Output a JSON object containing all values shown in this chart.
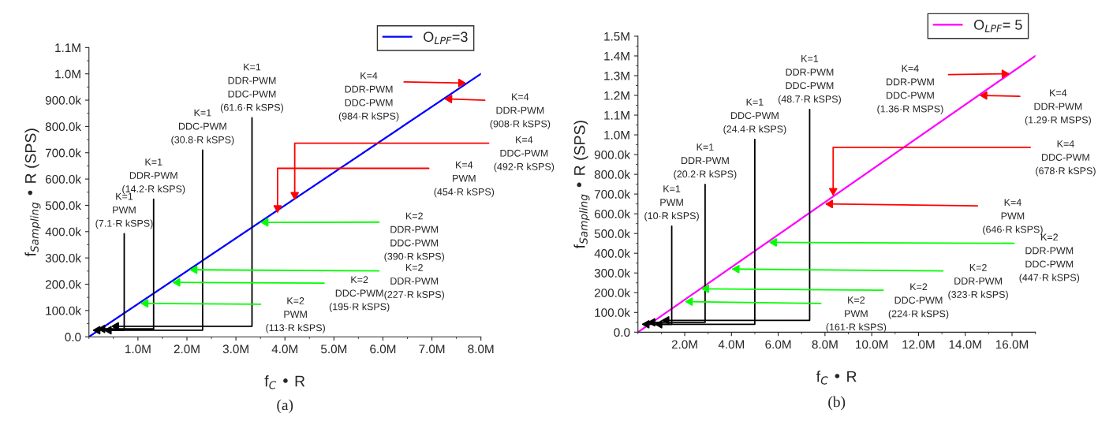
{
  "chart_data": [
    {
      "type": "line",
      "title": "(a)",
      "xlabel": "f$_{C}$ • R",
      "ylabel": "f$_{Sampling}$ • R (SPS)",
      "series": [
        {
          "name": "O$_{LPF}$=3",
          "color": "#0000ff",
          "x": [
            0,
            8000000
          ],
          "values": [
            0,
            1000000
          ]
        }
      ],
      "xlim": [
        0,
        8000000
      ],
      "ylim": [
        0,
        1100000
      ],
      "xticks": [
        {
          "value": 1000000,
          "label": "1.0M"
        },
        {
          "value": 2000000,
          "label": "2.0M"
        },
        {
          "value": 3000000,
          "label": "3.0M"
        },
        {
          "value": 4000000,
          "label": "4.0M"
        },
        {
          "value": 5000000,
          "label": "5.0M"
        },
        {
          "value": 6000000,
          "label": "6.0M"
        },
        {
          "value": 7000000,
          "label": "7.0M"
        },
        {
          "value": 8000000,
          "label": "8.0M"
        }
      ],
      "yticks": [
        {
          "value": 0,
          "label": "0.0"
        },
        {
          "value": 100000,
          "label": "100.0k"
        },
        {
          "value": 200000,
          "label": "200.0k"
        },
        {
          "value": 300000,
          "label": "300.0k"
        },
        {
          "value": 400000,
          "label": "400.0k"
        },
        {
          "value": 500000,
          "label": "500.0k"
        },
        {
          "value": 600000,
          "label": "600.0k"
        },
        {
          "value": 700000,
          "label": "700.0k"
        },
        {
          "value": 800000,
          "label": "800.0k"
        },
        {
          "value": 900000,
          "label": "900.0k"
        },
        {
          "value": 1000000,
          "label": "1.0M"
        },
        {
          "value": 1100000,
          "label": "1.1M"
        }
      ],
      "grid": false,
      "legend": "top right",
      "marker": "none",
      "line_style": "solid",
      "annotations": [
        {
          "text": "K=1\nPWM\n(7.1·R kSPS)",
          "x": 70000,
          "y": 25000
        },
        {
          "text": "K=1\nDDR-PWM\n(14.2·R kSPS)",
          "x": 170000,
          "y": 30000
        },
        {
          "text": "K=1\nDDC-PWM\n(30.8·R kSPS)",
          "x": 300000,
          "y": 25000
        },
        {
          "text": "K=1\nDDR-PWM\nDDC-PWM\n(61.6·R kSPS)",
          "x": 450000,
          "y": 40000
        },
        {
          "text": "K=4\nDDR-PWM\nDDC-PWM\n(984·R kSPS)",
          "x": 7700000,
          "y": 965000
        },
        {
          "text": "K=4\nDDR-PWM\n(908·R kSPS)",
          "x": 7250000,
          "y": 905000
        },
        {
          "text": "K=4\nDDC-PWM\n(492·R kSPS)",
          "x": 4200000,
          "y": 520000
        },
        {
          "text": "K=4\nPWM\n(454·R kSPS)",
          "x": 3850000,
          "y": 470000
        },
        {
          "text": "K=2\nDDR-PWM\nDDC-PWM\n(390·R kSPS)",
          "x": 3500000,
          "y": 435000
        },
        {
          "text": "K=2\nDDR-PWM\n(227·R kSPS)",
          "x": 2050000,
          "y": 255000
        },
        {
          "text": "K=2\nDDC-PWM\n(195·R kSPS)",
          "x": 1700000,
          "y": 207000
        },
        {
          "text": "K=2\nPWM\n(113·R kSPS)",
          "x": 1050000,
          "y": 127000
        }
      ]
    },
    {
      "type": "line",
      "title": "(b)",
      "xlabel": "f$_{C}$ • R",
      "ylabel": "f$_{Sampling}$ • R (SPS)",
      "series": [
        {
          "name": "O$_{LPF}$= 5",
          "color": "#ff00ff",
          "x": [
            0,
            17000000
          ],
          "values": [
            0,
            1400000
          ]
        }
      ],
      "xlim": [
        0,
        17000000
      ],
      "ylim": [
        0,
        1500000
      ],
      "xticks": [
        {
          "value": 2000000,
          "label": "2.0M"
        },
        {
          "value": 4000000,
          "label": "4.0M"
        },
        {
          "value": 6000000,
          "label": "6.0M"
        },
        {
          "value": 8000000,
          "label": "8.0M"
        },
        {
          "value": 10000000,
          "label": "10.0M"
        },
        {
          "value": 12000000,
          "label": "12.0M"
        },
        {
          "value": 14000000,
          "label": "14.0M"
        },
        {
          "value": 16000000,
          "label": "16.0M"
        }
      ],
      "yticks": [
        {
          "value": 0,
          "label": "0.0"
        },
        {
          "value": 100000,
          "label": "100.0k"
        },
        {
          "value": 200000,
          "label": "200.0k"
        },
        {
          "value": 300000,
          "label": "300.0k"
        },
        {
          "value": 400000,
          "label": "400.0k"
        },
        {
          "value": 500000,
          "label": "500.0k"
        },
        {
          "value": 600000,
          "label": "600.0k"
        },
        {
          "value": 700000,
          "label": "700.0k"
        },
        {
          "value": 800000,
          "label": "800.0k"
        },
        {
          "value": 900000,
          "label": "900.0k"
        },
        {
          "value": 1000000,
          "label": "1.0M"
        },
        {
          "value": 1100000,
          "label": "1.1M"
        },
        {
          "value": 1200000,
          "label": "1.2M"
        },
        {
          "value": 1300000,
          "label": "1.3M"
        },
        {
          "value": 1400000,
          "label": "1.4M"
        },
        {
          "value": 1500000,
          "label": "1.5M"
        }
      ],
      "grid": false,
      "legend": "top right",
      "marker": "none",
      "line_style": "solid",
      "annotations": [
        {
          "text": "K=1\nPWM\n(10·R kSPS)",
          "x": 150000,
          "y": 40000
        },
        {
          "text": "K=1\nDDR-PWM\n(20.2·R kSPS)",
          "x": 400000,
          "y": 50000
        },
        {
          "text": "K=1\nDDC-PWM\n(24.4·R kSPS)",
          "x": 700000,
          "y": 40000
        },
        {
          "text": "K=1\nDDR-PWM\nDDC-PWM\n(48.7·R kSPS)",
          "x": 1000000,
          "y": 60000
        },
        {
          "text": "K=4\nDDR-PWM\nDDC-PWM\n(1.36·R MSPS)",
          "x": 15900000,
          "y": 1310000
        },
        {
          "text": "K=4\nDDR-PWM\n(1.29·R MSPS)",
          "x": 14600000,
          "y": 1200000
        },
        {
          "text": "K=4\nDDC-PWM\n(678·R kSPS)",
          "x": 8350000,
          "y": 690000
        },
        {
          "text": "K=4\nPWM\n(646·R kSPS)",
          "x": 8000000,
          "y": 650000
        },
        {
          "text": "K=2\nDDR-PWM\nDDC-PWM\n(447·R kSPS)",
          "x": 5600000,
          "y": 455000
        },
        {
          "text": "K=2\nDDR-PWM\n(323·R kSPS)",
          "x": 4000000,
          "y": 320000
        },
        {
          "text": "K=2\nDDC-PWM\n(224·R kSPS)",
          "x": 2700000,
          "y": 220000
        },
        {
          "text": "K=2\nPWM\n(161·R kSPS)",
          "x": 2000000,
          "y": 155000
        }
      ]
    }
  ]
}
